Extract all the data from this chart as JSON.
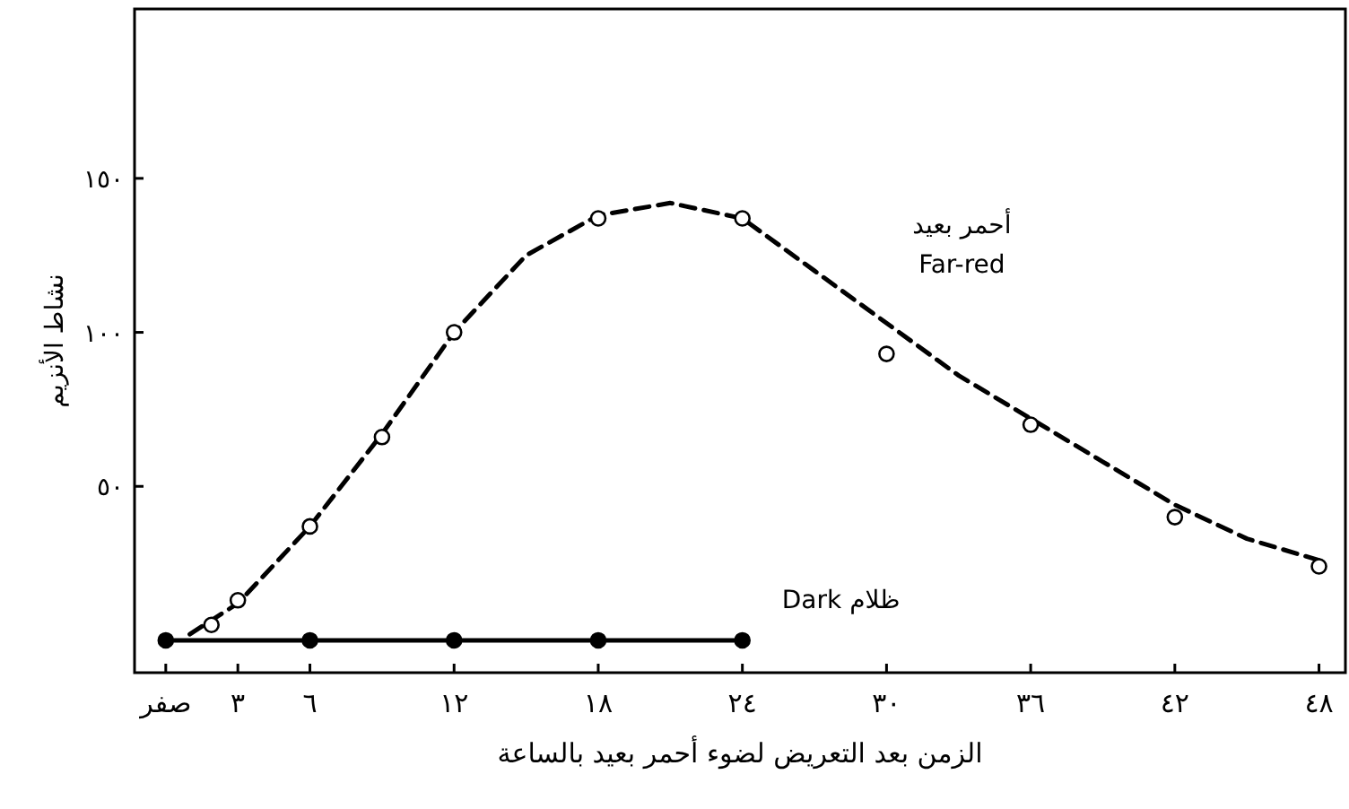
{
  "chart_data": {
    "type": "line",
    "xlabel": "الزمن بعد التعريض لضوء أحمر بعيد بالساعة",
    "ylabel": "نشاط الأنزيم",
    "xlim": [
      -1.3,
      49.1
    ],
    "ylim": [
      -10.5,
      205
    ],
    "xticks": [
      {
        "value": 0,
        "label": "صفر"
      },
      {
        "value": 3,
        "label": "٣"
      },
      {
        "value": 6,
        "label": "٦"
      },
      {
        "value": 12,
        "label": "١٢"
      },
      {
        "value": 18,
        "label": "١٨"
      },
      {
        "value": 24,
        "label": "٢٤"
      },
      {
        "value": 30,
        "label": "٣٠"
      },
      {
        "value": 36,
        "label": "٣٦"
      },
      {
        "value": 42,
        "label": "٤٢"
      },
      {
        "value": 48,
        "label": "٤٨"
      }
    ],
    "yticks": [
      {
        "value": 50,
        "label": "٥٠"
      },
      {
        "value": 100,
        "label": "١٠٠"
      },
      {
        "value": 150,
        "label": "١٥٠"
      }
    ],
    "grid": false,
    "legend": false,
    "series": [
      {
        "name": "Dark ظلام",
        "color": "#000000",
        "marker": "circle",
        "line_style": "solid",
        "x": [
          0,
          6,
          12,
          18,
          24
        ],
        "values": [
          0,
          0,
          0,
          0,
          0
        ]
      },
      {
        "name": "أحمر بعيد\nFar-red",
        "color": "#000000",
        "marker": "none",
        "line_style": "dashed",
        "x": [
          1,
          3,
          6,
          9,
          12,
          15,
          18,
          21,
          24,
          27,
          30,
          33,
          36,
          39,
          42,
          45,
          48
        ],
        "values": [
          2,
          12,
          37,
          67,
          100,
          125,
          138,
          142,
          137,
          120,
          103,
          86,
          72,
          58,
          44,
          33,
          26
        ]
      },
      {
        "type": "scatter",
        "color": "#000000",
        "marker": "circle",
        "x": [
          1.9,
          3,
          6,
          9,
          12,
          18,
          24,
          30,
          36,
          42,
          48
        ],
        "values": [
          5,
          13,
          37,
          66,
          100,
          137,
          137,
          93,
          70,
          40,
          24
        ]
      }
    ]
  }
}
